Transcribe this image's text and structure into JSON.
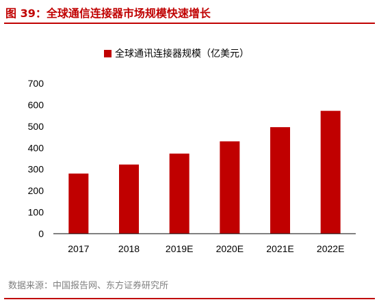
{
  "figure": {
    "title": "图 39：全球通信连接器市场规模快速增长",
    "source": "数据来源：中国报告网、东方证券研究所"
  },
  "colors": {
    "accent": "#c00000",
    "bar": "#c00000",
    "text": "#000000",
    "source": "#7f7f7f"
  },
  "chart_data": {
    "type": "bar",
    "title": "",
    "xlabel": "",
    "ylabel": "",
    "categories": [
      "2017",
      "2018",
      "2019E",
      "2020E",
      "2021E",
      "2022E"
    ],
    "series": [
      {
        "name": "全球通讯连接器规模（亿美元）",
        "values": [
          280,
          322,
          373,
          430,
          496,
          572
        ]
      }
    ],
    "ylim": [
      0,
      700
    ],
    "yticks": [
      "0",
      "100",
      "200",
      "300",
      "400",
      "500",
      "600",
      "700"
    ],
    "grid": false,
    "legend": "top-center"
  }
}
